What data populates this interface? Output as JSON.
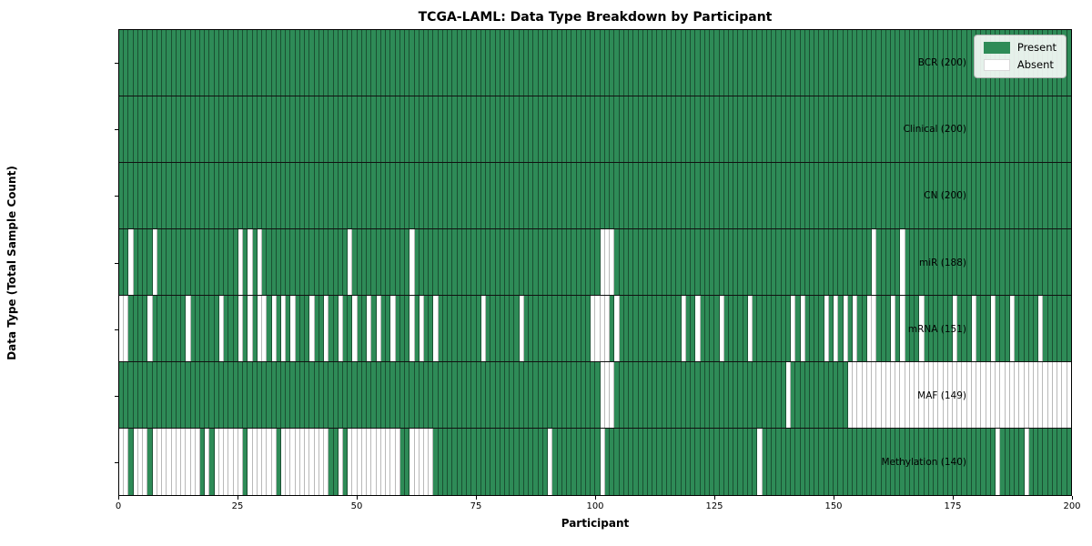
{
  "chart_data": {
    "type": "heatmap",
    "title": "TCGA-LAML: Data Type Breakdown by Participant",
    "xlabel": "Participant",
    "ylabel": "Data Type (Total Sample Count)",
    "n_participants": 200,
    "x_ticks": [
      0,
      25,
      50,
      75,
      100,
      125,
      150,
      175,
      200
    ],
    "colors": {
      "present": "#2e8b57",
      "absent": "#ffffff"
    },
    "legend": [
      {
        "label": "Present",
        "color": "#2e8b57"
      },
      {
        "label": "Absent",
        "color": "#ffffff"
      }
    ],
    "rows": [
      {
        "label": "BCR (200)",
        "present_count": 200,
        "absent": []
      },
      {
        "label": "Clinical (200)",
        "present_count": 200,
        "absent": []
      },
      {
        "label": "CN (200)",
        "present_count": 200,
        "absent": []
      },
      {
        "label": "miR (188)",
        "present_count": 188,
        "absent": [
          2,
          7,
          25,
          27,
          29,
          48,
          61,
          101,
          102,
          103,
          158,
          164
        ]
      },
      {
        "label": "mRNA (151)",
        "present_count": 151,
        "absent": [
          0,
          1,
          6,
          14,
          21,
          25,
          27,
          29,
          30,
          32,
          34,
          36,
          40,
          43,
          46,
          49,
          52,
          54,
          57,
          61,
          63,
          66,
          76,
          84,
          99,
          100,
          101,
          102,
          104,
          118,
          121,
          126,
          132,
          141,
          143,
          148,
          150,
          152,
          154,
          157,
          158,
          162,
          164,
          168,
          175,
          179,
          183,
          187,
          193
        ]
      },
      {
        "label": "MAF (149)",
        "present_count": 149,
        "absent": [
          101,
          102,
          103,
          140,
          153,
          154,
          155,
          156,
          157,
          158,
          159,
          160,
          161,
          162,
          163,
          164,
          165,
          166,
          167,
          168,
          169,
          170,
          171,
          172,
          173,
          174,
          175,
          176,
          177,
          178,
          179,
          180,
          181,
          182,
          183,
          184,
          185,
          186,
          187,
          188,
          189,
          190,
          191,
          192,
          193,
          194,
          195,
          196,
          197,
          198,
          199
        ]
      },
      {
        "label": "Methylation (140)",
        "present_count": 140,
        "absent": [
          0,
          1,
          3,
          4,
          5,
          7,
          8,
          9,
          10,
          11,
          12,
          13,
          14,
          15,
          16,
          18,
          20,
          21,
          22,
          23,
          24,
          25,
          27,
          28,
          29,
          30,
          31,
          32,
          34,
          35,
          36,
          37,
          38,
          39,
          40,
          41,
          42,
          43,
          46,
          48,
          49,
          50,
          51,
          52,
          53,
          54,
          55,
          56,
          57,
          58,
          61,
          62,
          63,
          64,
          65,
          90,
          101,
          134,
          184,
          190
        ]
      }
    ]
  }
}
